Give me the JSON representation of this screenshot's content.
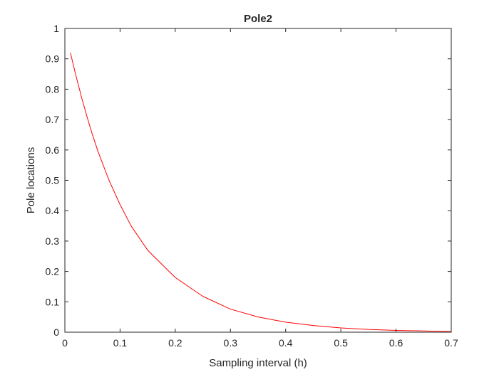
{
  "chart_data": {
    "type": "line",
    "title": "Pole2",
    "xlabel": "Sampling interval (h)",
    "ylabel": "Pole locations",
    "xlim": [
      0,
      0.7
    ],
    "ylim": [
      0,
      1
    ],
    "xticks": [
      0,
      0.1,
      0.2,
      0.3,
      0.4,
      0.5,
      0.6,
      0.7
    ],
    "yticks": [
      0,
      0.1,
      0.2,
      0.3,
      0.4,
      0.5,
      0.6,
      0.7,
      0.8,
      0.9,
      1
    ],
    "xtick_labels": [
      "0",
      "0.1",
      "0.2",
      "0.3",
      "0.4",
      "0.5",
      "0.6",
      "0.7"
    ],
    "ytick_labels": [
      "0",
      "0.1",
      "0.2",
      "0.3",
      "0.4",
      "0.5",
      "0.6",
      "0.7",
      "0.8",
      "0.9",
      "1"
    ],
    "grid": false,
    "box": true,
    "series": [
      {
        "color": "#ff0000",
        "x": [
          0.01,
          0.02,
          0.03,
          0.04,
          0.05,
          0.06,
          0.08,
          0.1,
          0.12,
          0.15,
          0.2,
          0.25,
          0.3,
          0.35,
          0.4,
          0.45,
          0.5,
          0.55,
          0.6,
          0.65,
          0.7
        ],
        "y": [
          0.92,
          0.845,
          0.775,
          0.71,
          0.65,
          0.595,
          0.5,
          0.42,
          0.35,
          0.27,
          0.18,
          0.118,
          0.076,
          0.05,
          0.033,
          0.022,
          0.014,
          0.009,
          0.006,
          0.004,
          0.002
        ]
      }
    ]
  }
}
